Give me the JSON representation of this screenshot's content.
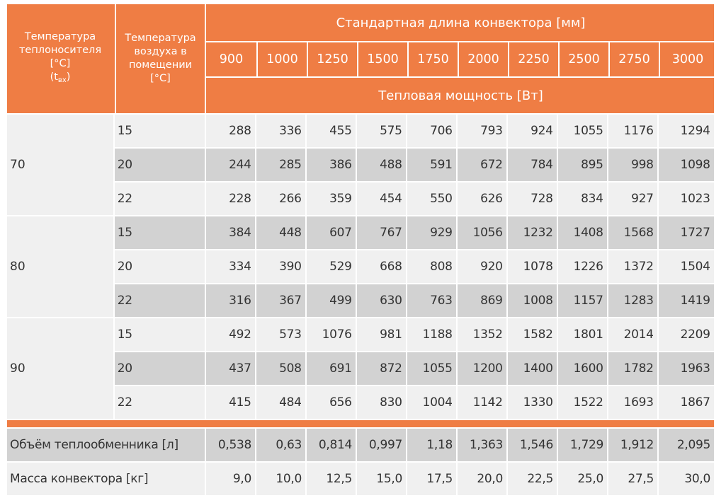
{
  "header": {
    "col1": [
      "Температура",
      "теплоносителя",
      "[°C]"
    ],
    "col1_sub_t": "(t",
    "col1_sub_x": "вх",
    "col1_sub_close": ")",
    "col2": [
      "Температура",
      "воздуха в",
      "помещении",
      "[°C]"
    ],
    "length_title": "Стандартная длина конвектора [мм]",
    "lengths": [
      "900",
      "1000",
      "1250",
      "1500",
      "1750",
      "2000",
      "2250",
      "2500",
      "2750",
      "3000"
    ],
    "power_title": "Тепловая мощность [Вт]"
  },
  "groups": [
    {
      "coolant_temp": "70",
      "rows": [
        {
          "air": "15",
          "values": [
            "288",
            "336",
            "455",
            "575",
            "706",
            "793",
            "924",
            "1055",
            "1176",
            "1294"
          ]
        },
        {
          "air": "20",
          "values": [
            "244",
            "285",
            "386",
            "488",
            "591",
            "672",
            "784",
            "895",
            "998",
            "1098"
          ]
        },
        {
          "air": "22",
          "values": [
            "228",
            "266",
            "359",
            "454",
            "550",
            "626",
            "728",
            "834",
            "927",
            "1023"
          ]
        }
      ]
    },
    {
      "coolant_temp": "80",
      "rows": [
        {
          "air": "15",
          "values": [
            "384",
            "448",
            "607",
            "767",
            "929",
            "1056",
            "1232",
            "1408",
            "1568",
            "1727"
          ]
        },
        {
          "air": "20",
          "values": [
            "334",
            "390",
            "529",
            "668",
            "808",
            "920",
            "1078",
            "1226",
            "1372",
            "1504"
          ]
        },
        {
          "air": "22",
          "values": [
            "316",
            "367",
            "499",
            "630",
            "763",
            "869",
            "1008",
            "1157",
            "1283",
            "1419"
          ]
        }
      ]
    },
    {
      "coolant_temp": "90",
      "rows": [
        {
          "air": "15",
          "values": [
            "492",
            "573",
            "1076",
            "981",
            "1188",
            "1352",
            "1582",
            "1801",
            "2014",
            "2209"
          ]
        },
        {
          "air": "20",
          "values": [
            "437",
            "508",
            "691",
            "872",
            "1055",
            "1200",
            "1400",
            "1600",
            "1782",
            "1963"
          ]
        },
        {
          "air": "22",
          "values": [
            "415",
            "484",
            "656",
            "830",
            "1004",
            "1142",
            "1330",
            "1522",
            "1693",
            "1867"
          ]
        }
      ]
    }
  ],
  "footer": [
    {
      "label": "Объём теплообменника [л]",
      "values": [
        "0,538",
        "0,63",
        "0,814",
        "0,997",
        "1,18",
        "1,363",
        "1,546",
        "1,729",
        "1,912",
        "2,095"
      ]
    },
    {
      "label": "Масса конвектора [кг]",
      "values": [
        "9,0",
        "10,0",
        "12,5",
        "15,0",
        "17,5",
        "20,0",
        "22,5",
        "25,0",
        "27,5",
        "30,0"
      ]
    }
  ],
  "colors": {
    "accent": "#ef7d44",
    "row_light": "#f0f0f0",
    "row_dark": "#d2d2d2"
  }
}
